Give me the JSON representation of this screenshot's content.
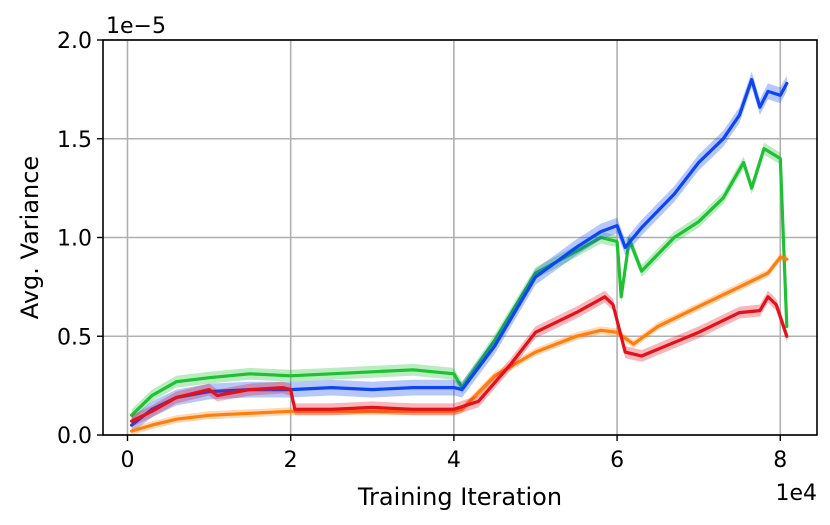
{
  "chart_data": {
    "type": "line",
    "xlabel": "Training Iteration",
    "ylabel": "Avg. Variance",
    "x_offset_label": "1e4",
    "y_offset_label": "1e−5",
    "xlim": [
      -0.3,
      8.45
    ],
    "ylim": [
      0.0,
      2.0
    ],
    "xticks": [
      0,
      2,
      4,
      6,
      8
    ],
    "xtick_labels": [
      "0",
      "2",
      "4",
      "6",
      "8"
    ],
    "yticks": [
      0.0,
      0.5,
      1.0,
      1.5,
      2.0
    ],
    "ytick_labels": [
      "0.0",
      "0.5",
      "1.0",
      "1.5",
      "2.0"
    ],
    "grid": true,
    "legend": "none",
    "series": [
      {
        "color": "#1ec131",
        "band": 0.03,
        "x": [
          0.05,
          0.3,
          0.6,
          1.0,
          1.5,
          2.0,
          2.5,
          3.0,
          3.5,
          4.0,
          4.1,
          4.5,
          5.0,
          5.5,
          5.8,
          6.0,
          6.05,
          6.15,
          6.3,
          6.7,
          7.0,
          7.3,
          7.55,
          7.65,
          7.8,
          8.0,
          8.08
        ],
        "y": [
          0.1,
          0.2,
          0.27,
          0.29,
          0.31,
          0.3,
          0.31,
          0.32,
          0.33,
          0.31,
          0.24,
          0.48,
          0.82,
          0.93,
          1.0,
          0.98,
          0.7,
          0.99,
          0.83,
          1.0,
          1.08,
          1.2,
          1.38,
          1.25,
          1.45,
          1.4,
          0.55
        ]
      },
      {
        "color": "#0d45f5",
        "band": 0.04,
        "x": [
          0.05,
          0.3,
          0.6,
          1.0,
          1.5,
          2.0,
          2.5,
          3.0,
          3.5,
          4.0,
          4.1,
          4.5,
          5.0,
          5.5,
          5.8,
          6.0,
          6.1,
          6.3,
          6.7,
          7.0,
          7.3,
          7.5,
          7.65,
          7.75,
          7.85,
          8.0,
          8.08
        ],
        "y": [
          0.05,
          0.13,
          0.19,
          0.22,
          0.23,
          0.23,
          0.24,
          0.23,
          0.24,
          0.24,
          0.23,
          0.45,
          0.8,
          0.95,
          1.03,
          1.06,
          0.95,
          1.05,
          1.22,
          1.38,
          1.5,
          1.62,
          1.8,
          1.66,
          1.74,
          1.72,
          1.78
        ]
      },
      {
        "color": "#ff7f0e",
        "band": 0.02,
        "x": [
          0.05,
          0.3,
          0.6,
          1.0,
          1.5,
          2.0,
          2.5,
          3.0,
          3.5,
          4.0,
          4.1,
          4.5,
          5.0,
          5.5,
          5.8,
          6.0,
          6.2,
          6.5,
          7.0,
          7.5,
          7.85,
          8.0,
          8.08
        ],
        "y": [
          0.02,
          0.05,
          0.08,
          0.1,
          0.11,
          0.12,
          0.12,
          0.12,
          0.12,
          0.12,
          0.13,
          0.3,
          0.42,
          0.5,
          0.53,
          0.52,
          0.46,
          0.55,
          0.65,
          0.75,
          0.82,
          0.9,
          0.89
        ]
      },
      {
        "color": "#e4101a",
        "band": 0.03,
        "x": [
          0.05,
          0.3,
          0.6,
          1.0,
          1.1,
          1.5,
          1.9,
          2.0,
          2.05,
          2.5,
          3.0,
          3.5,
          4.0,
          4.3,
          4.7,
          5.0,
          5.5,
          5.85,
          5.95,
          6.1,
          6.3,
          7.0,
          7.5,
          7.75,
          7.85,
          7.95,
          8.08
        ],
        "y": [
          0.07,
          0.12,
          0.19,
          0.23,
          0.2,
          0.23,
          0.24,
          0.23,
          0.13,
          0.13,
          0.14,
          0.13,
          0.13,
          0.17,
          0.36,
          0.52,
          0.62,
          0.7,
          0.66,
          0.42,
          0.4,
          0.52,
          0.62,
          0.63,
          0.7,
          0.66,
          0.5
        ]
      }
    ]
  }
}
